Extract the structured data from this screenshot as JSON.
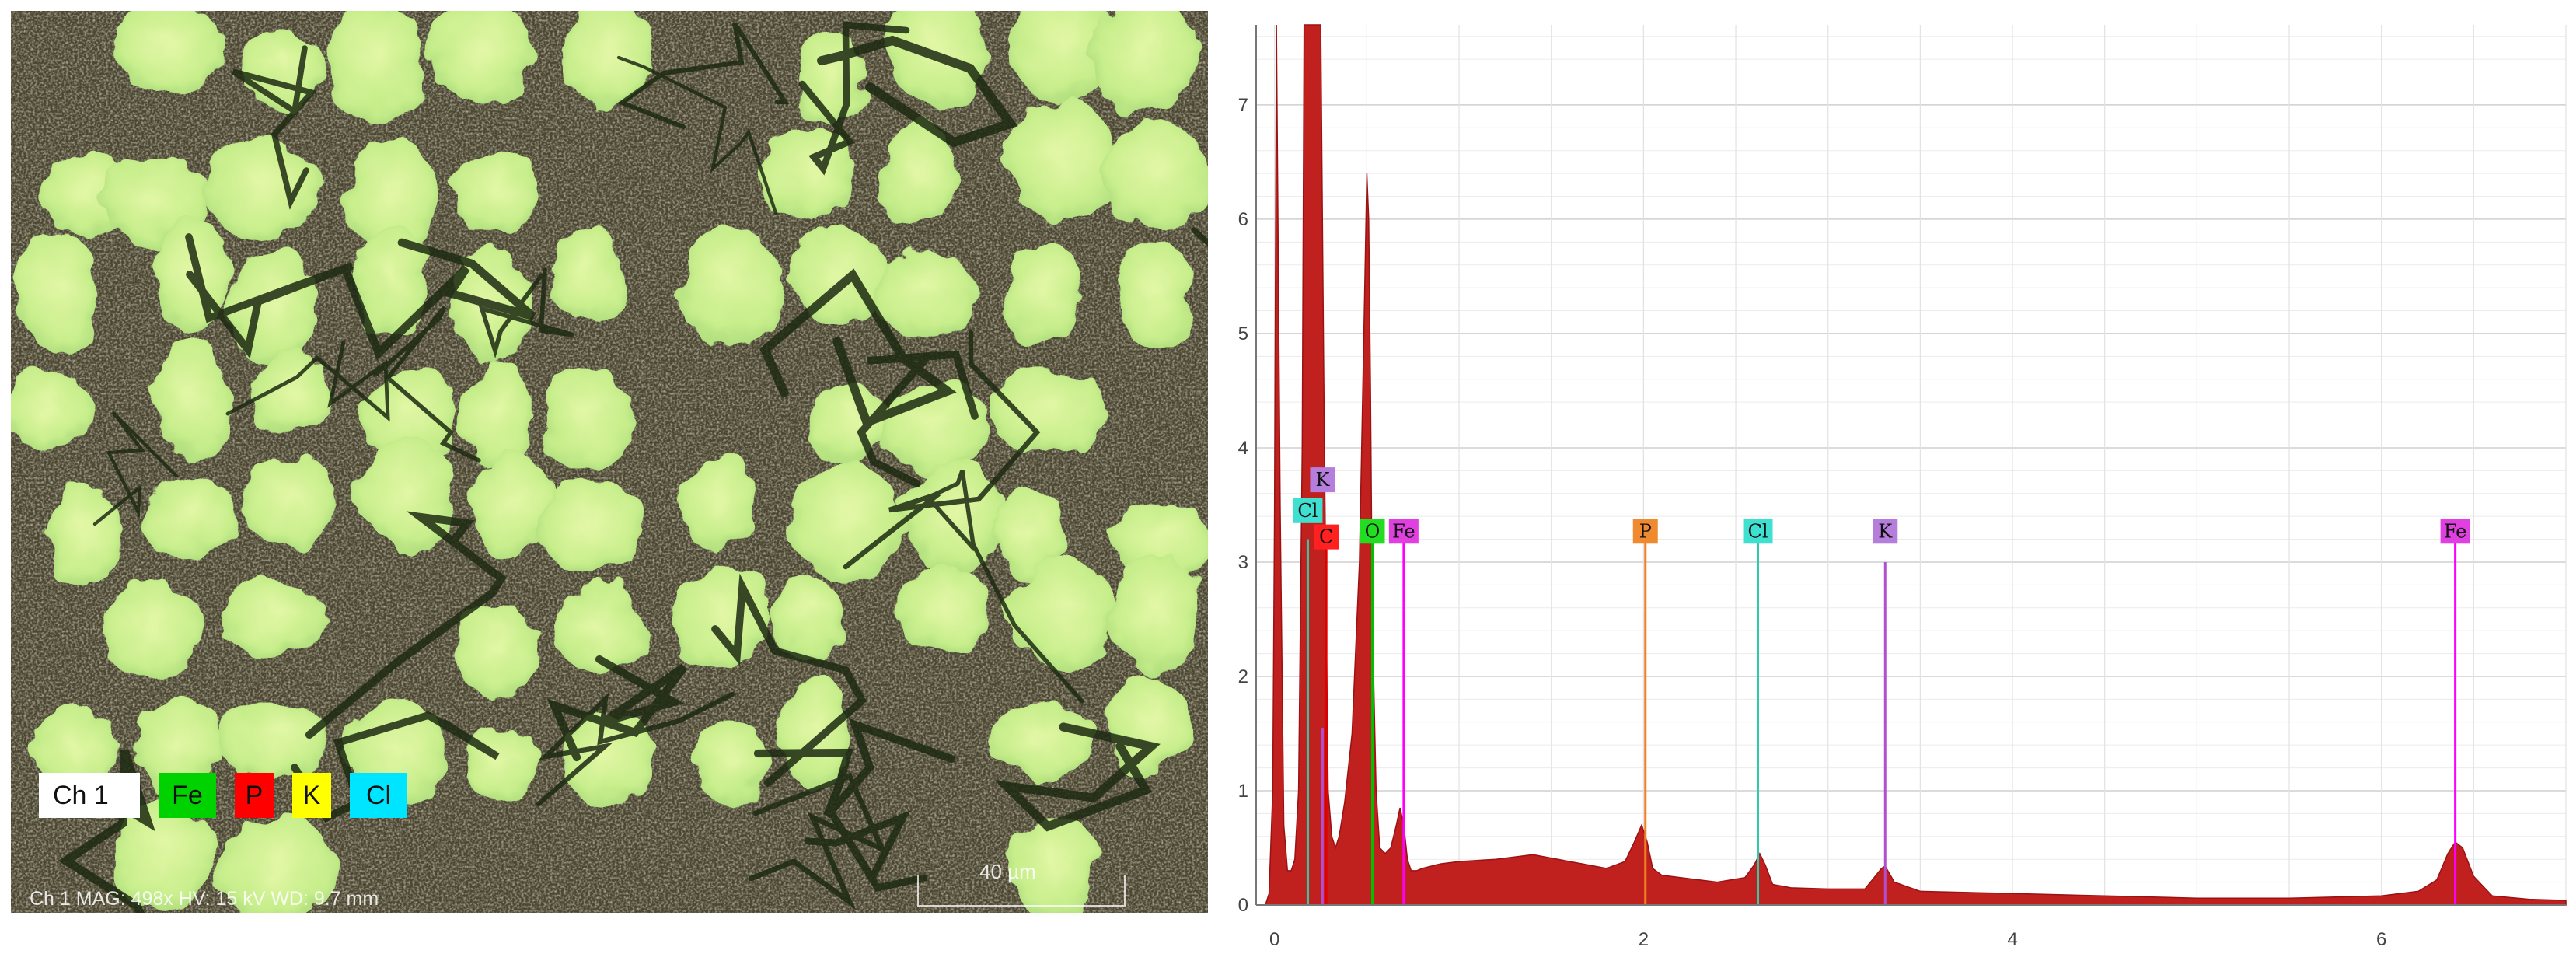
{
  "micrograph": {
    "legend": [
      {
        "label": "Ch 1",
        "color": "#ffffff"
      },
      {
        "label": "Fe",
        "color": "#00d200"
      },
      {
        "label": "P",
        "color": "#ff0000"
      },
      {
        "label": "K",
        "color": "#ffff00"
      },
      {
        "label": "Cl",
        "color": "#00e5ff"
      }
    ],
    "info_text": "Ch 1  MAG: 498x  HV: 15 kV  WD: 9.7 mm",
    "scale_bar_label": "40 µm"
  },
  "chart_data": {
    "type": "area",
    "title": "",
    "xlabel": "",
    "ylabel": "",
    "xlim": [
      -0.1,
      7.0
    ],
    "ylim": [
      0,
      7.7
    ],
    "xticks": [
      "0",
      "2",
      "4",
      "6"
    ],
    "yticks": [
      "1",
      "2",
      "3",
      "4",
      "5",
      "6",
      "7",
      "0"
    ],
    "grid": true,
    "fill_color": "#c0201e",
    "series": [
      {
        "x": [
          -0.08,
          -0.05,
          -0.03,
          -0.01,
          0.0,
          0.01,
          0.03,
          0.05,
          0.07,
          0.09,
          0.11,
          0.13,
          0.15,
          0.16,
          0.17,
          0.18,
          0.2,
          0.22,
          0.25,
          0.27,
          0.29,
          0.31,
          0.33,
          0.35,
          0.38,
          0.42,
          0.46,
          0.49,
          0.5,
          0.51,
          0.52,
          0.53,
          0.55,
          0.57,
          0.6,
          0.63,
          0.66,
          0.68,
          0.7,
          0.72,
          0.74,
          0.77,
          0.8,
          0.9,
          1.0,
          1.2,
          1.4,
          1.6,
          1.8,
          1.9,
          1.95,
          1.99,
          2.02,
          2.05,
          2.1,
          2.2,
          2.4,
          2.55,
          2.6,
          2.63,
          2.66,
          2.7,
          2.8,
          3.0,
          3.2,
          3.29,
          3.31,
          3.36,
          3.5,
          4.0,
          4.5,
          5.0,
          5.5,
          6.0,
          6.2,
          6.3,
          6.36,
          6.4,
          6.44,
          6.5,
          6.6,
          6.8,
          7.0
        ],
        "values": [
          0.0,
          0.0,
          0.1,
          1.0,
          3.5,
          7.7,
          3.5,
          0.7,
          0.3,
          0.3,
          0.4,
          1.0,
          4.0,
          7.7,
          7.7,
          7.7,
          7.7,
          7.7,
          7.7,
          4.0,
          1.0,
          0.6,
          0.5,
          0.6,
          0.9,
          1.5,
          3.0,
          5.5,
          6.4,
          6.0,
          4.5,
          2.5,
          1.0,
          0.5,
          0.45,
          0.5,
          0.7,
          0.85,
          0.7,
          0.4,
          0.3,
          0.3,
          0.32,
          0.36,
          0.38,
          0.4,
          0.44,
          0.38,
          0.32,
          0.38,
          0.55,
          0.7,
          0.55,
          0.32,
          0.26,
          0.24,
          0.2,
          0.24,
          0.35,
          0.45,
          0.35,
          0.18,
          0.15,
          0.14,
          0.14,
          0.32,
          0.34,
          0.2,
          0.12,
          0.1,
          0.08,
          0.06,
          0.06,
          0.08,
          0.12,
          0.22,
          0.45,
          0.55,
          0.5,
          0.25,
          0.08,
          0.05,
          0.04
        ]
      }
    ],
    "element_lines": [
      {
        "label": "Cl",
        "x": 0.18,
        "label_y": 3.45,
        "line_top": 3.2,
        "color": "#33c9a6",
        "label_bg": "#40e0d0"
      },
      {
        "label": "K",
        "x": 0.26,
        "label_y": 3.72,
        "line_top": 1.55,
        "color": "#b04fd0",
        "label_bg": "#b57edc"
      },
      {
        "label": "C",
        "x": 0.28,
        "label_y": 3.22,
        "line_top": 3.2,
        "color": "#e00000",
        "label_bg": "#ff2020"
      },
      {
        "label": "O",
        "x": 0.53,
        "label_y": 3.27,
        "line_top": 3.2,
        "color": "#00c000",
        "label_bg": "#22dd22"
      },
      {
        "label": "Fe",
        "x": 0.7,
        "label_y": 3.27,
        "line_top": 3.2,
        "color": "#ff00ff",
        "label_bg": "#e040e0"
      },
      {
        "label": "P",
        "x": 2.01,
        "label_y": 3.27,
        "line_top": 3.2,
        "color": "#f08020",
        "label_bg": "#f08a30"
      },
      {
        "label": "Cl",
        "x": 2.62,
        "label_y": 3.27,
        "line_top": 3.2,
        "color": "#33c9a6",
        "label_bg": "#40e0d0"
      },
      {
        "label": "K",
        "x": 3.31,
        "label_y": 3.27,
        "line_top": 3.0,
        "color": "#b04fd0",
        "label_bg": "#b57edc"
      },
      {
        "label": "Fe",
        "x": 6.4,
        "label_y": 3.27,
        "line_top": 3.2,
        "color": "#ff00ff",
        "label_bg": "#e040e0"
      }
    ]
  }
}
